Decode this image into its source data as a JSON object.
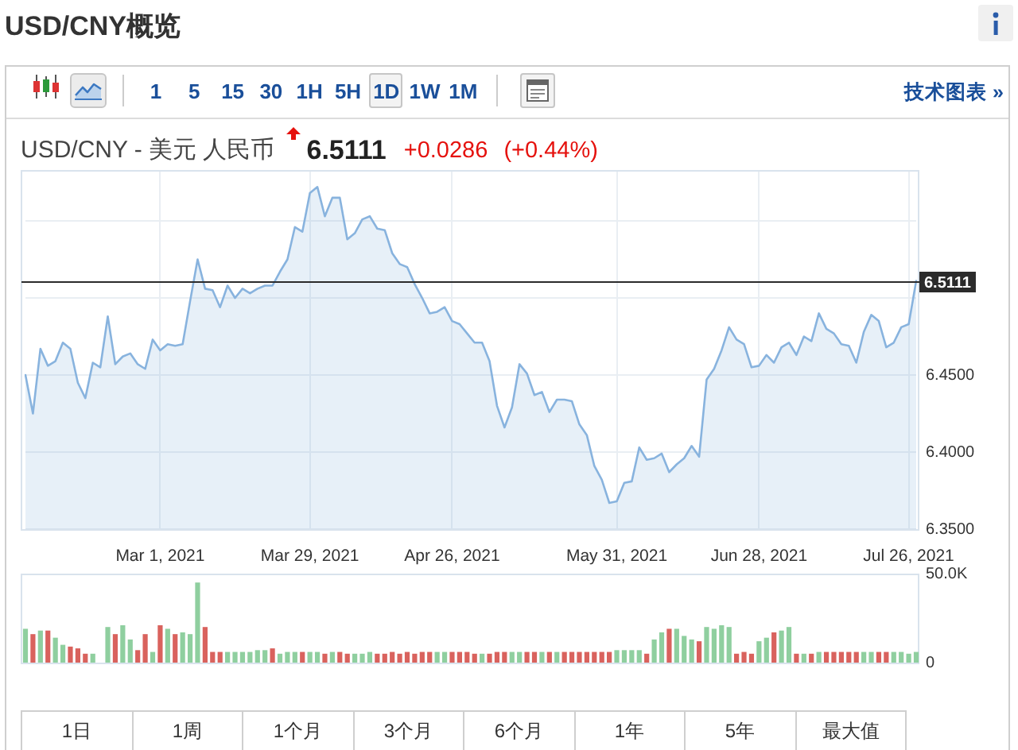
{
  "chart_data": [
    {
      "type": "area",
      "title": "USD/CNY概览",
      "subtitle": "USD/CNY - 美元 人民币",
      "categories": [
        null,
        null,
        null,
        null,
        null,
        null,
        null,
        null,
        null,
        null,
        null,
        null,
        null,
        null,
        null,
        null,
        null,
        null,
        "Mar 1, 2021",
        null,
        null,
        null,
        null,
        null,
        null,
        null,
        null,
        null,
        null,
        null,
        null,
        null,
        null,
        null,
        null,
        null,
        null,
        null,
        "Mar 29, 2021",
        null,
        null,
        null,
        null,
        null,
        null,
        null,
        null,
        null,
        null,
        null,
        null,
        null,
        null,
        null,
        null,
        null,
        null,
        "Apr 26, 2021",
        null,
        null,
        null,
        null,
        null,
        null,
        null,
        null,
        null,
        null,
        null,
        null,
        null,
        null,
        null,
        null,
        null,
        null,
        null,
        null,
        null,
        "May 31, 2021",
        null,
        null,
        null,
        null,
        null,
        null,
        null,
        null,
        null,
        null,
        null,
        null,
        null,
        null,
        null,
        null,
        null,
        null,
        "Jun 28, 2021",
        null,
        null,
        null,
        null,
        null,
        null,
        null,
        null,
        null,
        null,
        null,
        null,
        null,
        null,
        null,
        null,
        null,
        null,
        null,
        "Jul 26, 2021",
        null
      ],
      "values": [
        6.45,
        6.425,
        6.467,
        6.456,
        6.459,
        6.471,
        6.467,
        6.445,
        6.435,
        6.458,
        6.455,
        6.488,
        6.457,
        6.462,
        6.464,
        6.457,
        6.454,
        6.473,
        6.466,
        6.47,
        6.469,
        6.47,
        6.498,
        6.525,
        6.506,
        6.505,
        6.494,
        6.508,
        6.5,
        6.506,
        6.503,
        6.506,
        6.508,
        6.508,
        6.517,
        6.525,
        6.546,
        6.543,
        6.568,
        6.572,
        6.553,
        6.565,
        6.565,
        6.538,
        6.542,
        6.551,
        6.553,
        6.545,
        6.544,
        6.529,
        6.522,
        6.52,
        6.509,
        6.5,
        6.49,
        6.491,
        6.494,
        6.485,
        6.483,
        6.477,
        6.471,
        6.471,
        6.459,
        6.43,
        6.416,
        6.429,
        6.457,
        6.451,
        6.437,
        6.439,
        6.426,
        6.434,
        6.434,
        6.433,
        6.418,
        6.411,
        6.391,
        6.382,
        6.367,
        6.368,
        6.38,
        6.381,
        6.403,
        6.395,
        6.396,
        6.399,
        6.387,
        6.392,
        6.396,
        6.404,
        6.397,
        6.447,
        6.454,
        6.466,
        6.481,
        6.473,
        6.47,
        6.455,
        6.456,
        6.463,
        6.458,
        6.468,
        6.471,
        6.463,
        6.475,
        6.472,
        6.49,
        6.48,
        6.477,
        6.47,
        6.469,
        6.458,
        6.478,
        6.489,
        6.485,
        6.468,
        6.471,
        6.481,
        6.483,
        6.5111
      ],
      "color": "#88b3de",
      "ylim": [
        6.35,
        6.583
      ],
      "yticks": [
        {
          "value": 6.35,
          "label": "6.3500"
        },
        {
          "value": 6.4,
          "label": "6.4000"
        },
        {
          "value": 6.45,
          "label": "6.4500"
        },
        {
          "value": 6.5,
          "label": null
        },
        {
          "value": 6.55,
          "label": null
        }
      ],
      "grid": true,
      "ref_lines": [
        {
          "axis": "y",
          "value": 6.5111,
          "label": "6.5111",
          "color": "#2b2b2b"
        }
      ],
      "annotations": [
        "6.5111",
        "+0.0286",
        "(+0.44%)",
        "1 5 15 30 1H 5H 1D 1W 1M",
        "技术图表 »"
      ]
    },
    {
      "type": "bar",
      "categories": [
        null,
        null,
        null,
        null,
        null,
        null,
        null,
        null,
        null,
        null,
        null,
        null,
        null,
        null,
        null,
        null,
        null,
        null,
        null,
        null,
        null,
        null,
        null,
        null,
        null,
        null,
        null,
        null,
        null,
        null,
        null,
        null,
        null,
        null,
        null,
        null,
        null,
        null,
        null,
        null,
        null,
        null,
        null,
        null,
        null,
        null,
        null,
        null,
        null,
        null,
        null,
        null,
        null,
        null,
        null,
        null,
        null,
        null,
        null,
        null,
        null,
        null,
        null,
        null,
        null,
        null,
        null,
        null,
        null,
        null,
        null,
        null,
        null,
        null,
        null,
        null,
        null,
        null,
        null,
        null,
        null,
        null,
        null,
        null,
        null,
        null,
        null,
        null,
        null,
        null,
        null,
        null,
        null,
        null,
        null,
        null,
        null,
        null,
        null,
        null,
        null,
        null,
        null,
        null,
        null,
        null,
        null,
        null,
        null,
        null,
        null,
        null,
        null,
        null,
        null,
        null,
        null,
        null,
        null,
        null
      ],
      "values": [
        19000,
        16000,
        18000,
        18000,
        14000,
        10000,
        9000,
        8000,
        5000,
        5000,
        null,
        20000,
        16000,
        21000,
        13000,
        7000,
        16000,
        6000,
        21000,
        19000,
        16000,
        17000,
        16000,
        45000,
        20000,
        6000,
        6000,
        6000,
        6000,
        6000,
        6000,
        7000,
        7000,
        8000,
        5000,
        6000,
        6000,
        6000,
        6000,
        6000,
        5000,
        6000,
        6000,
        5000,
        5000,
        5000,
        6000,
        5000,
        5000,
        6000,
        5000,
        6000,
        5000,
        6000,
        6000,
        6000,
        6000,
        6000,
        6000,
        6000,
        5000,
        5000,
        5000,
        6000,
        6000,
        6000,
        6000,
        6000,
        6000,
        6000,
        6000,
        6000,
        6000,
        6000,
        6000,
        6000,
        6000,
        6000,
        6000,
        7000,
        7000,
        7000,
        7000,
        5000,
        13000,
        17000,
        19000,
        19000,
        15000,
        13000,
        12000,
        20000,
        19000,
        21000,
        20000,
        5000,
        6000,
        5000,
        12000,
        14000,
        17000,
        18000,
        20000,
        5000,
        5000,
        5000,
        6000,
        6000,
        6000,
        6000,
        6000,
        6000,
        6000,
        6000,
        6000,
        6000,
        6000,
        6000,
        5000,
        6000
      ],
      "colors": [
        "#8fcf9f",
        "#d9625d",
        "#8fcf9f",
        "#d9625d",
        "#8fcf9f",
        "#8fcf9f",
        "#d9625d",
        "#d9625d",
        "#d9625d",
        "#8fcf9f",
        "#8fcf9f",
        "#8fcf9f",
        "#d9625d",
        "#8fcf9f",
        "#8fcf9f",
        "#d9625d",
        "#d9625d",
        "#8fcf9f",
        "#d9625d",
        "#8fcf9f",
        "#d9625d",
        "#8fcf9f",
        "#8fcf9f",
        "#8fcf9f",
        "#d9625d",
        "#d9625d",
        "#d9625d",
        "#8fcf9f",
        "#8fcf9f",
        "#8fcf9f",
        "#8fcf9f",
        "#8fcf9f",
        "#8fcf9f",
        "#d9625d",
        "#8fcf9f",
        "#8fcf9f",
        "#8fcf9f",
        "#d9625d",
        "#8fcf9f",
        "#8fcf9f",
        "#d9625d",
        "#8fcf9f",
        "#d9625d",
        "#d9625d",
        "#8fcf9f",
        "#8fcf9f",
        "#8fcf9f",
        "#d9625d",
        "#d9625d",
        "#d9625d",
        "#d9625d",
        "#d9625d",
        "#d9625d",
        "#d9625d",
        "#d9625d",
        "#8fcf9f",
        "#8fcf9f",
        "#d9625d",
        "#d9625d",
        "#d9625d",
        "#d9625d",
        "#8fcf9f",
        "#d9625d",
        "#d9625d",
        "#d9625d",
        "#8fcf9f",
        "#8fcf9f",
        "#d9625d",
        "#d9625d",
        "#8fcf9f",
        "#d9625d",
        "#8fcf9f",
        "#d9625d",
        "#d9625d",
        "#d9625d",
        "#d9625d",
        "#d9625d",
        "#d9625d",
        "#d9625d",
        "#8fcf9f",
        "#8fcf9f",
        "#8fcf9f",
        "#8fcf9f",
        "#d9625d",
        "#8fcf9f",
        "#8fcf9f",
        "#d9625d",
        "#8fcf9f",
        "#8fcf9f",
        "#8fcf9f",
        "#d9625d",
        "#8fcf9f",
        "#8fcf9f",
        "#8fcf9f",
        "#8fcf9f",
        "#d9625d",
        "#d9625d",
        "#d9625d",
        "#8fcf9f",
        "#8fcf9f",
        "#d9625d",
        "#8fcf9f",
        "#8fcf9f",
        "#d9625d",
        "#8fcf9f",
        "#d9625d",
        "#8fcf9f",
        "#d9625d",
        "#d9625d",
        "#d9625d",
        "#d9625d",
        "#d9625d",
        "#8fcf9f",
        "#8fcf9f",
        "#d9625d",
        "#d9625d",
        "#8fcf9f",
        "#8fcf9f",
        "#8fcf9f",
        "#8fcf9f"
      ],
      "ylim": [
        0,
        50000
      ],
      "yticks": [
        0,
        {
          "value": 50000,
          "label": "50.0K"
        }
      ],
      "tick_labels": "y",
      "annotations": [
        "1日",
        "1周",
        "1个月",
        "3个月",
        "6个月",
        "1年",
        "5年",
        "最大值"
      ]
    }
  ]
}
